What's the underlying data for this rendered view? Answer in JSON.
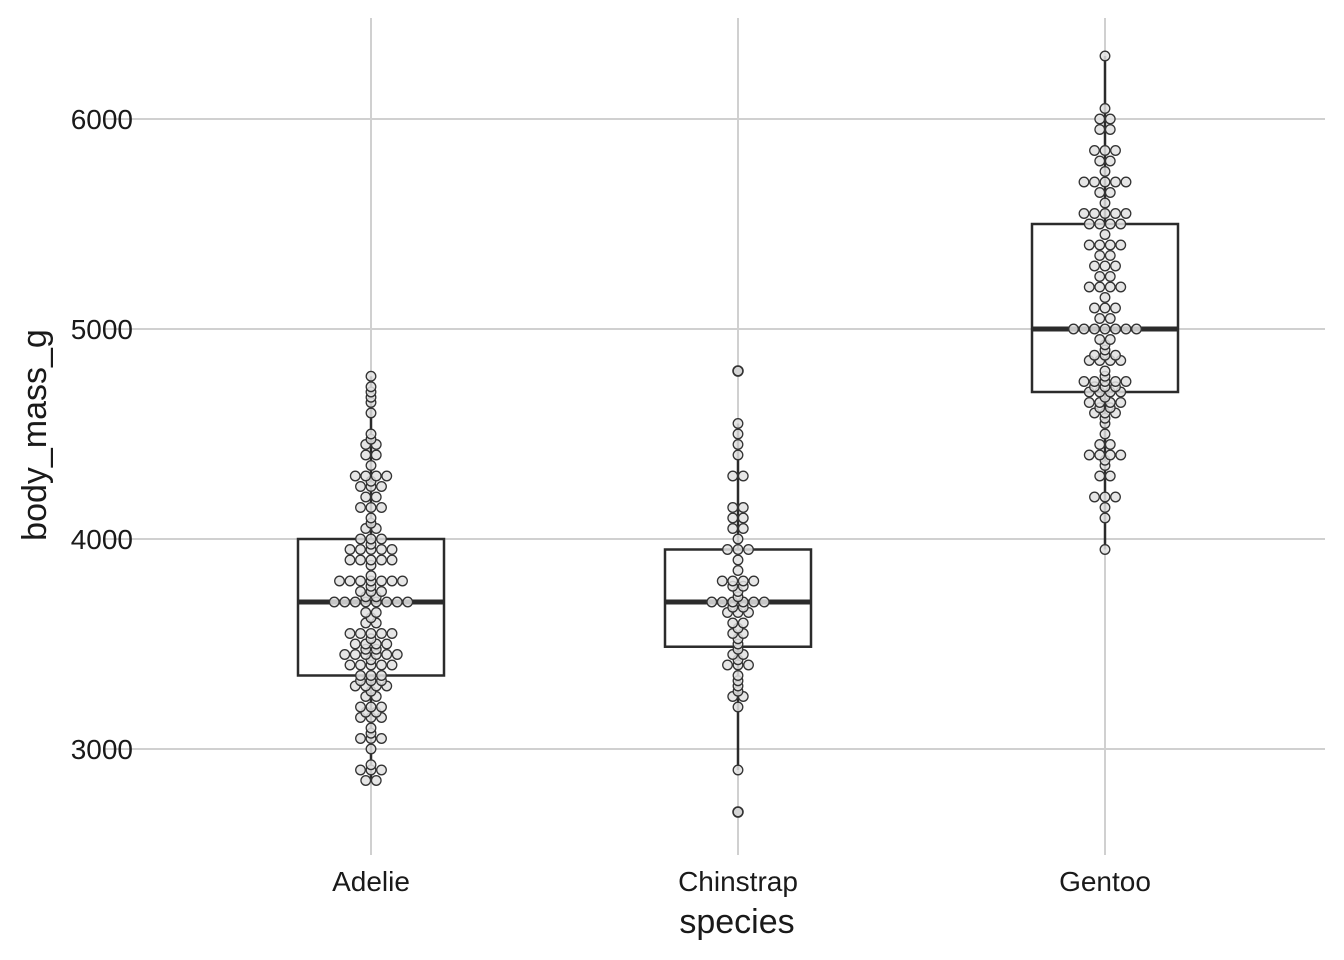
{
  "chart_data": {
    "type": "boxplot",
    "xlabel": "species",
    "ylabel": "body_mass_g",
    "categories": [
      "Adelie",
      "Chinstrap",
      "Gentoo"
    ],
    "yticks": [
      3000,
      4000,
      5000,
      6000
    ],
    "ylim": [
      2500,
      6500
    ],
    "grid": true,
    "box_color": "#2b2b2b",
    "point_fill": "#e2e2e2",
    "point_stroke": "#333333",
    "grid_color": "#d0d0d0",
    "boxes": [
      {
        "category": "Adelie",
        "whisker_low": 2850,
        "q1": 3350,
        "median": 3700,
        "q3": 4000,
        "whisker_high": 4775,
        "outliers": []
      },
      {
        "category": "Chinstrap",
        "whisker_low": 2900,
        "q1": 3487,
        "median": 3700,
        "q3": 3950,
        "whisker_high": 4550,
        "outliers": [
          2700,
          4800
        ]
      },
      {
        "category": "Gentoo",
        "whisker_low": 3950,
        "q1": 4700,
        "median": 5000,
        "q3": 5500,
        "whisker_high": 6300,
        "outliers": []
      }
    ],
    "points": {
      "Adelie": [
        2850,
        2850,
        2900,
        2900,
        2900,
        2925,
        3000,
        3050,
        3050,
        3050,
        3075,
        3100,
        3150,
        3150,
        3150,
        3175,
        3175,
        3200,
        3200,
        3200,
        3250,
        3250,
        3275,
        3300,
        3300,
        3300,
        3300,
        3325,
        3325,
        3325,
        3350,
        3350,
        3350,
        3400,
        3400,
        3400,
        3400,
        3400,
        3425,
        3450,
        3450,
        3450,
        3450,
        3450,
        3450,
        3475,
        3475,
        3500,
        3500,
        3500,
        3500,
        3525,
        3550,
        3550,
        3550,
        3550,
        3550,
        3600,
        3600,
        3625,
        3650,
        3650,
        3700,
        3700,
        3700,
        3700,
        3700,
        3700,
        3700,
        3700,
        3725,
        3725,
        3750,
        3750,
        3750,
        3775,
        3800,
        3800,
        3800,
        3800,
        3800,
        3800,
        3800,
        3825,
        3875,
        3900,
        3900,
        3900,
        3900,
        3900,
        3950,
        3950,
        3950,
        3950,
        3950,
        3975,
        4000,
        4000,
        4000,
        4050,
        4050,
        4075,
        4100,
        4150,
        4150,
        4150,
        4200,
        4200,
        4250,
        4250,
        4250,
        4275,
        4300,
        4300,
        4300,
        4300,
        4350,
        4400,
        4400,
        4450,
        4450,
        4475,
        4500,
        4600,
        4650,
        4675,
        4700,
        4725,
        4775
      ],
      "Chinstrap": [
        2700,
        2900,
        3200,
        3250,
        3250,
        3275,
        3300,
        3325,
        3350,
        3400,
        3400,
        3400,
        3425,
        3450,
        3450,
        3475,
        3500,
        3525,
        3550,
        3550,
        3575,
        3600,
        3600,
        3650,
        3650,
        3650,
        3675,
        3675,
        3700,
        3700,
        3700,
        3700,
        3700,
        3700,
        3725,
        3750,
        3775,
        3775,
        3800,
        3800,
        3800,
        3800,
        3850,
        3900,
        3950,
        3950,
        3950,
        4000,
        4050,
        4050,
        4100,
        4100,
        4150,
        4150,
        4300,
        4300,
        4400,
        4450,
        4500,
        4550,
        4800
      ],
      "Gentoo": [
        3950,
        4100,
        4150,
        4200,
        4200,
        4200,
        4300,
        4300,
        4350,
        4375,
        4400,
        4400,
        4400,
        4400,
        4450,
        4450,
        4500,
        4550,
        4575,
        4600,
        4600,
        4600,
        4625,
        4625,
        4650,
        4650,
        4650,
        4650,
        4675,
        4700,
        4700,
        4700,
        4700,
        4725,
        4725,
        4725,
        4750,
        4750,
        4750,
        4750,
        4750,
        4775,
        4800,
        4850,
        4850,
        4850,
        4850,
        4875,
        4875,
        4875,
        4900,
        4925,
        4950,
        4950,
        5000,
        5000,
        5000,
        5000,
        5000,
        5000,
        5000,
        5050,
        5050,
        5100,
        5100,
        5100,
        5150,
        5200,
        5200,
        5200,
        5200,
        5250,
        5250,
        5300,
        5300,
        5300,
        5350,
        5350,
        5400,
        5400,
        5400,
        5400,
        5450,
        5500,
        5500,
        5500,
        5500,
        5550,
        5550,
        5550,
        5550,
        5550,
        5600,
        5650,
        5650,
        5700,
        5700,
        5700,
        5700,
        5700,
        5750,
        5800,
        5800,
        5850,
        5850,
        5850,
        5950,
        5950,
        6000,
        6000,
        6050,
        6300
      ]
    }
  }
}
